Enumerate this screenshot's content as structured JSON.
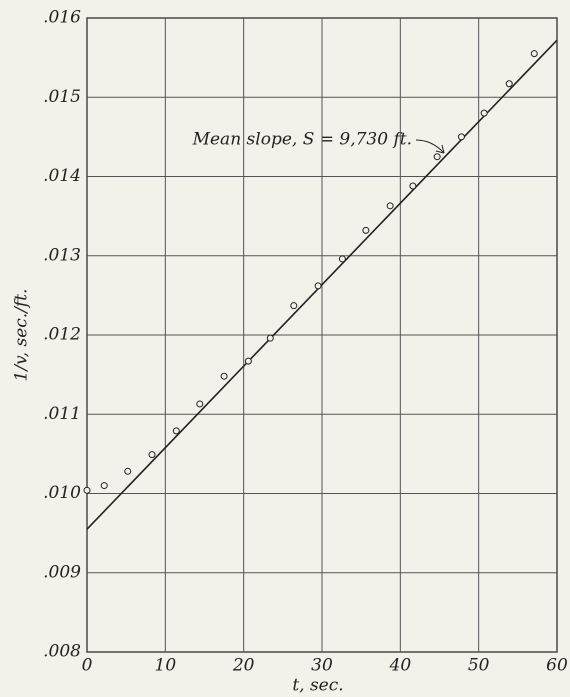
{
  "chart_data": {
    "type": "scatter",
    "xlabel": "t, sec.",
    "ylabel": "1/v, sec./ft.",
    "annotation": "Mean slope, S = 9,730 ft.",
    "x": [
      0,
      2.2,
      5.2,
      8.3,
      11.4,
      14.4,
      17.5,
      20.6,
      23.4,
      26.4,
      29.5,
      32.6,
      35.6,
      38.7,
      41.6,
      44.7,
      47.8,
      50.7,
      53.9,
      57.1
    ],
    "values": [
      0.01004,
      0.0101,
      0.01028,
      0.01049,
      0.01079,
      0.01113,
      0.01148,
      0.01167,
      0.01196,
      0.01237,
      0.01262,
      0.01296,
      0.01332,
      0.01363,
      0.01388,
      0.01425,
      0.0145,
      0.0148,
      0.01517,
      0.01555
    ],
    "fit_line": {
      "x": [
        0,
        60
      ],
      "values": [
        0.00955,
        0.01572
      ]
    },
    "color": "#222222",
    "xlim": [
      0,
      60
    ],
    "ylim": [
      0.008,
      0.016
    ],
    "xticks": [
      0,
      10,
      20,
      30,
      40,
      50,
      60
    ],
    "yticks": [
      {
        "value": 0.008,
        "label": ".008"
      },
      {
        "value": 0.009,
        "label": ".009"
      },
      {
        "value": 0.01,
        "label": ".010"
      },
      {
        "value": 0.011,
        "label": ".011"
      },
      {
        "value": 0.012,
        "label": ".012"
      },
      {
        "value": 0.013,
        "label": ".013"
      },
      {
        "value": 0.014,
        "label": ".014"
      },
      {
        "value": 0.015,
        "label": ".015"
      },
      {
        "value": 0.016,
        "label": ".016"
      }
    ],
    "grid": true
  }
}
